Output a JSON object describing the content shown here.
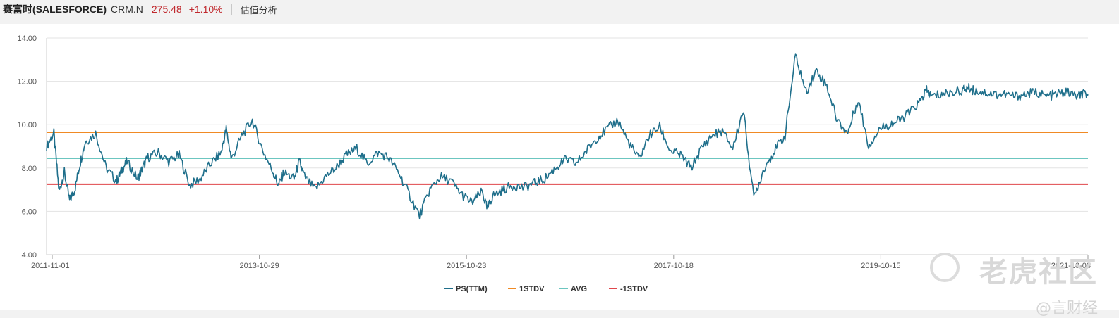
{
  "header": {
    "stock_name": "赛富时(SALESFORCE)",
    "ticker": "CRM.N",
    "price": "275.48",
    "change": "+1.10%",
    "tab_label": "估值分析"
  },
  "watermark": {
    "main": "老虎社区",
    "sub": "@言财经"
  },
  "colors": {
    "ps": "#1f6f8b",
    "stdv_plus": "#f08a24",
    "avg": "#6cc6c0",
    "stdv_minus": "#e0474c",
    "price_red": "#c0282d"
  },
  "chart_data": {
    "type": "line",
    "ylim": [
      4,
      14
    ],
    "y_ticks": [
      "4.00",
      "6.00",
      "8.00",
      "10.00",
      "12.00",
      "14.00"
    ],
    "x_tick_labels": [
      "2011-11-01",
      "2013-10-29",
      "2015-10-23",
      "2017-10-18",
      "2019-10-15",
      "2021-10-08"
    ],
    "x_range": [
      2011.83,
      2021.8
    ],
    "legend_position": "bottom-center",
    "grid": "horizontal",
    "series": [
      {
        "name": "PS(TTM)",
        "color": "#1f6f8b",
        "x": [
          2011.83,
          2011.9,
          2011.95,
          2012.0,
          2012.05,
          2012.1,
          2012.15,
          2012.2,
          2012.3,
          2012.4,
          2012.5,
          2012.55,
          2012.6,
          2012.7,
          2012.75,
          2012.8,
          2012.9,
          2013.0,
          2013.1,
          2013.2,
          2013.3,
          2013.4,
          2013.5,
          2013.55,
          2013.6,
          2013.7,
          2013.8,
          2013.9,
          2014.0,
          2014.05,
          2014.1,
          2014.2,
          2014.25,
          2014.3,
          2014.4,
          2014.5,
          2014.6,
          2014.7,
          2014.8,
          2014.9,
          2015.0,
          2015.1,
          2015.2,
          2015.3,
          2015.4,
          2015.5,
          2015.6,
          2015.7,
          2015.8,
          2015.9,
          2016.0,
          2016.05,
          2016.1,
          2016.2,
          2016.3,
          2016.4,
          2016.5,
          2016.6,
          2016.7,
          2016.8,
          2016.9,
          2017.0,
          2017.1,
          2017.2,
          2017.3,
          2017.4,
          2017.5,
          2017.6,
          2017.7,
          2017.8,
          2017.9,
          2018.0,
          2018.1,
          2018.2,
          2018.3,
          2018.4,
          2018.5,
          2018.6,
          2018.7,
          2018.8,
          2018.9,
          2019.0,
          2019.1,
          2019.2,
          2019.3,
          2019.4,
          2019.5,
          2019.6,
          2019.7,
          2019.8,
          2019.9,
          2020.0,
          2020.1,
          2020.2,
          2020.25,
          2020.3,
          2020.4,
          2020.5,
          2020.6,
          2020.65,
          2020.7,
          2020.8,
          2020.9,
          2021.0,
          2021.1,
          2021.2,
          2021.3,
          2021.4,
          2021.5,
          2021.6,
          2021.7,
          2021.75,
          2021.8
        ],
        "values": [
          9.0,
          9.6,
          6.9,
          7.8,
          6.5,
          7.0,
          8.2,
          9.2,
          9.6,
          8.0,
          7.4,
          7.9,
          8.3,
          7.5,
          8.0,
          8.5,
          8.7,
          8.3,
          8.6,
          7.2,
          7.5,
          8.2,
          8.7,
          9.8,
          8.4,
          9.5,
          10.2,
          8.8,
          7.8,
          7.2,
          7.8,
          7.5,
          8.3,
          7.6,
          7.0,
          7.6,
          8.0,
          8.6,
          8.9,
          8.2,
          8.7,
          8.5,
          7.8,
          6.8,
          5.8,
          7.0,
          7.6,
          7.4,
          6.8,
          6.4,
          6.9,
          6.1,
          6.7,
          7.0,
          7.2,
          7.1,
          7.3,
          7.5,
          8.0,
          8.4,
          8.2,
          8.8,
          9.4,
          9.8,
          10.2,
          9.2,
          8.4,
          9.5,
          9.9,
          8.8,
          8.6,
          8.0,
          8.9,
          9.5,
          9.7,
          8.9,
          10.7,
          6.6,
          8.0,
          8.8,
          9.5,
          13.2,
          11.5,
          12.5,
          11.8,
          10.2,
          9.6,
          11.2,
          9.0,
          9.8,
          10.0,
          10.2,
          10.6,
          11.1,
          11.6,
          11.3,
          11.4,
          11.5,
          11.6,
          11.7,
          11.6,
          11.5,
          11.4,
          11.4,
          11.3,
          11.4,
          11.5,
          11.3,
          11.4,
          11.5,
          11.3,
          11.4,
          11.4
        ]
      },
      {
        "name": "1STDV",
        "color": "#f08a24",
        "constant": 9.65
      },
      {
        "name": "AVG",
        "color": "#6cc6c0",
        "constant": 8.45
      },
      {
        "name": "-1STDV",
        "color": "#e0474c",
        "constant": 7.25
      }
    ]
  }
}
